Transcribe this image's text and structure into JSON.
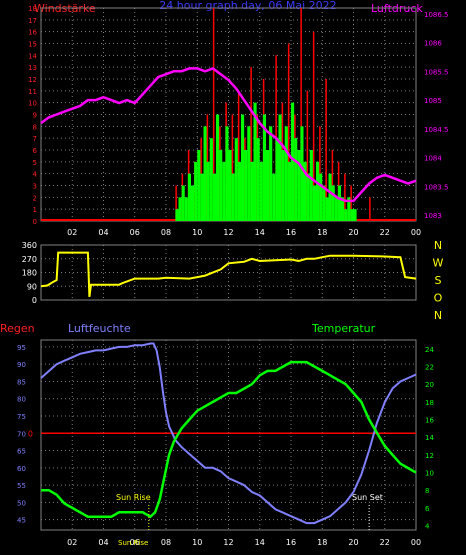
{
  "header": {
    "left_title": "Windstärke",
    "center_title": "24 hour graph day, 06 Mai 2022",
    "right_title": "Luftdruck"
  },
  "colors": {
    "wind_axis": "#ff2020",
    "pressure_axis": "#ff00ff",
    "title_blue": "#3a3aff",
    "wind_fill": "#00ff00",
    "gust": "#ff0000",
    "direction": "#ffff00",
    "humidity": "#8080ff",
    "temperature": "#00ff00",
    "rain": "#ff0000",
    "grid": "#808080"
  },
  "panel_labels": {
    "rain": "Regen",
    "humidity": "Luftfeuchte",
    "temperature": "Temperatur"
  },
  "annotations": {
    "sun_rise": "Sun Rise",
    "sun_set": "Sun Set"
  },
  "time_ticks": [
    "02",
    "04",
    "06",
    "08",
    "10",
    "12",
    "14",
    "16",
    "18",
    "20",
    "22",
    "00"
  ],
  "chart_data": [
    {
      "type": "bar",
      "name": "wind_pressure",
      "x_unit": "hour",
      "xlim": [
        0,
        24
      ],
      "y_wind_ticks": [
        0,
        1,
        2,
        3,
        4,
        5,
        6,
        7,
        8,
        9,
        10,
        11,
        12,
        13,
        14,
        15,
        16,
        17,
        18
      ],
      "ylim_wind": [
        0,
        18
      ],
      "y_pressure_ticks": [
        "1083",
        "1083.5",
        "1084",
        "1084.5",
        "1085",
        "1085.5",
        "1086",
        "1086.5"
      ],
      "ylim_pressure": [
        1082.9,
        1086.6
      ],
      "series": [
        {
          "name": "wind",
          "x": [
            8.6,
            8.8,
            9.0,
            9.2,
            9.4,
            9.6,
            9.8,
            10.0,
            10.2,
            10.4,
            10.6,
            10.8,
            11.0,
            11.2,
            11.4,
            11.6,
            11.8,
            12.0,
            12.2,
            12.4,
            12.6,
            12.8,
            13.0,
            13.2,
            13.4,
            13.6,
            13.8,
            14.0,
            14.2,
            14.4,
            14.6,
            14.8,
            15.0,
            15.2,
            15.4,
            15.6,
            15.8,
            16.0,
            16.2,
            16.4,
            16.6,
            16.8,
            17.0,
            17.2,
            17.4,
            17.6,
            17.8,
            18.0,
            18.2,
            18.4,
            18.6,
            18.8,
            19.0,
            19.2,
            19.4,
            19.6,
            19.8,
            20.0
          ],
          "values": [
            1,
            2,
            3,
            2,
            4,
            3,
            5,
            6,
            4,
            8,
            5,
            7,
            4,
            9,
            6,
            5,
            8,
            6,
            4,
            7,
            5,
            9,
            6,
            8,
            5,
            10,
            7,
            5,
            9,
            6,
            8,
            4,
            7,
            9,
            6,
            8,
            5,
            10,
            7,
            6,
            8,
            5,
            4,
            6,
            3,
            5,
            4,
            3,
            2,
            4,
            3,
            2,
            3,
            2,
            1,
            2,
            1,
            1
          ]
        },
        {
          "name": "gust",
          "x": [
            8.6,
            9.0,
            9.4,
            9.8,
            10.2,
            10.6,
            11.0,
            11.4,
            11.8,
            12.2,
            12.6,
            13.0,
            13.4,
            13.8,
            14.2,
            14.6,
            15.0,
            15.4,
            15.8,
            16.2,
            16.6,
            17.0,
            17.4,
            17.8,
            18.2,
            18.6,
            19.0,
            19.4,
            19.8,
            21.0
          ],
          "values": [
            3,
            4,
            6,
            5,
            7,
            9,
            18,
            8,
            10,
            9,
            11,
            7,
            13,
            9,
            12,
            8,
            14,
            10,
            15,
            9,
            18,
            11,
            16,
            8,
            12,
            6,
            5,
            4,
            3,
            2
          ]
        },
        {
          "name": "pressure",
          "x": [
            0,
            0.5,
            1,
            1.5,
            2,
            2.5,
            3,
            3.5,
            4,
            4.5,
            5,
            5.5,
            6,
            6.5,
            7,
            7.5,
            8,
            8.5,
            9,
            9.5,
            10,
            10.5,
            11,
            11.5,
            12,
            12.5,
            13,
            13.5,
            14,
            14.5,
            15,
            15.5,
            16,
            16.5,
            17,
            17.5,
            18,
            18.5,
            19,
            19.5,
            20,
            20.5,
            21,
            21.5,
            22,
            22.5,
            23,
            23.5,
            24
          ],
          "values": [
            1084.6,
            1084.7,
            1084.75,
            1084.8,
            1084.85,
            1084.9,
            1085.0,
            1085.0,
            1085.05,
            1085.0,
            1084.95,
            1085.0,
            1084.95,
            1085.1,
            1085.25,
            1085.4,
            1085.45,
            1085.5,
            1085.5,
            1085.55,
            1085.55,
            1085.5,
            1085.55,
            1085.45,
            1085.35,
            1085.2,
            1085.0,
            1084.8,
            1084.6,
            1084.45,
            1084.35,
            1084.2,
            1084.0,
            1083.9,
            1083.7,
            1083.6,
            1083.5,
            1083.4,
            1083.3,
            1083.25,
            1083.25,
            1083.4,
            1083.55,
            1083.65,
            1083.7,
            1083.65,
            1083.6,
            1083.55,
            1083.6
          ]
        }
      ]
    },
    {
      "type": "line",
      "name": "wind_direction",
      "x_unit": "hour",
      "xlim": [
        0,
        24
      ],
      "y_ticks": [
        0,
        90,
        180,
        270,
        360
      ],
      "ylim": [
        0,
        360
      ],
      "compass_labels": [
        "N",
        "W",
        "S",
        "O",
        "N"
      ],
      "series": [
        {
          "name": "direction",
          "x": [
            0,
            0.4,
            0.8,
            1.0,
            1.1,
            3.0,
            3.1,
            3.2,
            5.0,
            5.2,
            6.0,
            6.2,
            7.5,
            8.0,
            9.5,
            10.0,
            10.5,
            11.5,
            12.0,
            13.0,
            13.5,
            14.0,
            15.0,
            16.0,
            16.5,
            17.0,
            17.5,
            18.0,
            18.5,
            20.0,
            22.0,
            23.0,
            23.3,
            24.0
          ],
          "values": [
            90,
            95,
            120,
            130,
            310,
            310,
            20,
            100,
            100,
            110,
            140,
            140,
            140,
            145,
            140,
            150,
            160,
            200,
            240,
            250,
            270,
            255,
            260,
            265,
            255,
            270,
            270,
            280,
            290,
            290,
            285,
            280,
            150,
            140
          ]
        }
      ]
    },
    {
      "type": "line",
      "name": "humidity_temperature_rain",
      "x_unit": "hour",
      "xlim": [
        0,
        24
      ],
      "y_humidity_ticks": [
        45,
        50,
        55,
        60,
        65,
        70,
        75,
        80,
        85,
        90,
        95
      ],
      "ylim_humidity": [
        42,
        97
      ],
      "y_temperature_ticks": [
        4,
        6,
        8,
        10,
        12,
        14,
        16,
        18,
        20,
        22,
        24
      ],
      "ylim_temperature": [
        3.5,
        25
      ],
      "y_rain_ticks": [
        0
      ],
      "series": [
        {
          "name": "humidity",
          "x": [
            0,
            0.5,
            1,
            1.5,
            2,
            2.5,
            3,
            3.5,
            4,
            4.5,
            5,
            5.5,
            6,
            6.5,
            7,
            7.2,
            7.4,
            7.6,
            7.8,
            8.0,
            8.2,
            8.4,
            8.6,
            9.0,
            9.5,
            10,
            10.5,
            11,
            11.5,
            12,
            12.5,
            13,
            13.5,
            14,
            14.5,
            15,
            15.5,
            16,
            16.5,
            17,
            17.5,
            18,
            18.5,
            19,
            19.5,
            20,
            20.5,
            21,
            21.5,
            22,
            22.5,
            23,
            23.5,
            24
          ],
          "values": [
            86,
            88,
            90,
            91,
            92,
            93,
            93.5,
            94,
            94,
            94.5,
            95,
            95,
            95.5,
            95.5,
            96,
            96,
            94,
            89,
            82,
            76,
            72,
            70,
            68,
            66,
            64,
            62,
            60,
            60,
            59,
            57,
            56,
            55,
            53,
            52,
            50,
            48,
            47,
            46,
            45,
            44,
            44,
            45,
            46,
            48,
            50,
            53,
            58,
            65,
            73,
            79,
            83,
            85,
            86,
            87
          ]
        },
        {
          "name": "temperature",
          "x": [
            0,
            0.5,
            1,
            1.5,
            2,
            2.5,
            3,
            3.5,
            4,
            4.5,
            5,
            5.5,
            6,
            6.5,
            7,
            7.3,
            7.6,
            7.9,
            8.2,
            8.5,
            9,
            9.5,
            10,
            10.5,
            11,
            11.5,
            12,
            12.5,
            13,
            13.5,
            14,
            14.5,
            15,
            15.5,
            16,
            16.5,
            17,
            17.5,
            18,
            18.5,
            19,
            19.5,
            20,
            20.5,
            21,
            21.5,
            22,
            22.5,
            23,
            23.5,
            24
          ],
          "values": [
            8,
            8,
            7.5,
            6.5,
            6,
            5.5,
            5,
            5,
            5,
            5,
            5.5,
            5.5,
            5.5,
            5.5,
            5,
            5.5,
            7,
            9.5,
            12,
            13.5,
            15,
            16,
            17,
            17.5,
            18,
            18.5,
            19,
            19,
            19.5,
            20,
            21,
            21.5,
            21.5,
            22,
            22.5,
            22.5,
            22.5,
            22,
            21.5,
            21,
            20.5,
            20,
            19,
            18,
            16,
            14.5,
            13,
            12,
            11,
            10.5,
            10
          ]
        },
        {
          "name": "rain",
          "x": [
            0,
            24
          ],
          "values": [
            0,
            0
          ]
        }
      ]
    }
  ]
}
